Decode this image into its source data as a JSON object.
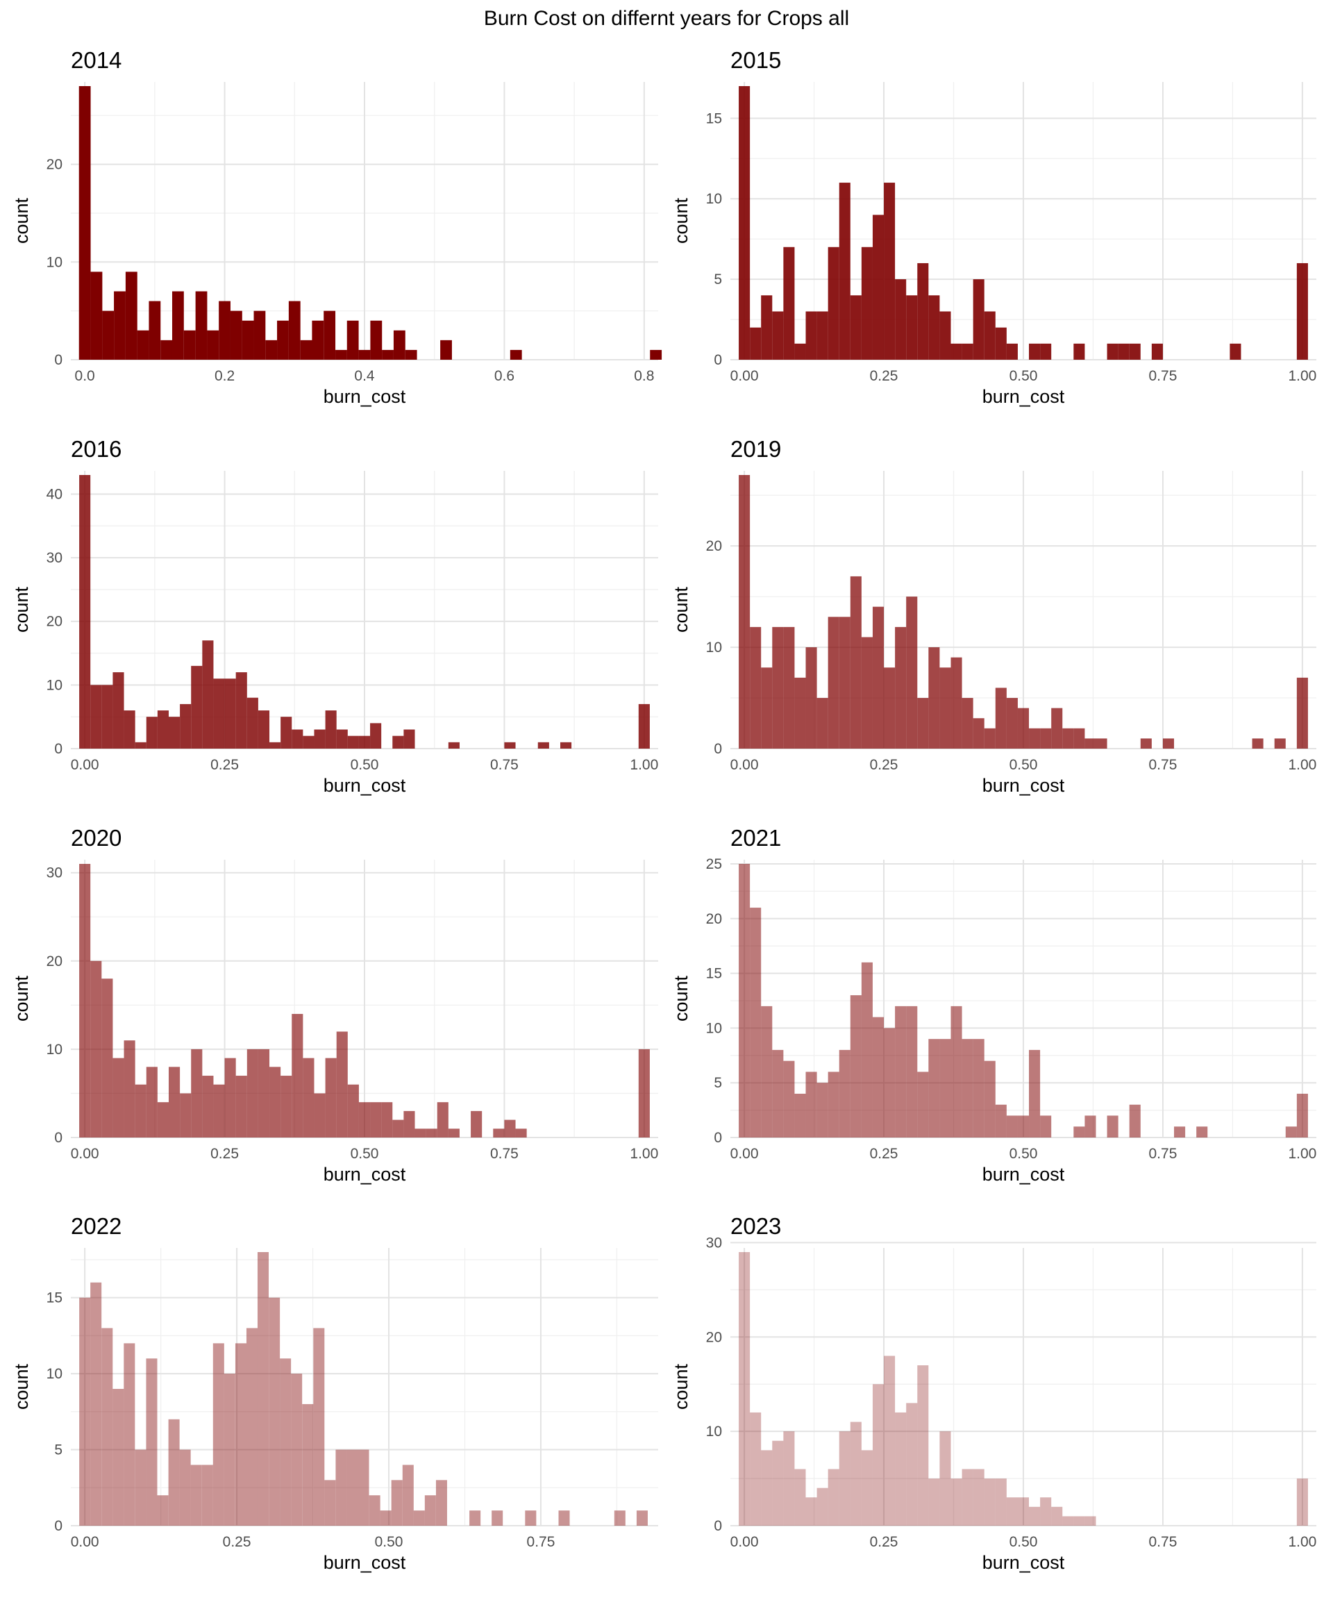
{
  "title": "Burn Cost on differnt years for Crops all",
  "chart_data": [
    {
      "type": "bar",
      "title": "2014",
      "xlabel": "burn_cost",
      "ylabel": "count",
      "fill": "#7f0000",
      "opacity": 1.0,
      "xlim": [
        -0.02,
        0.82
      ],
      "ylim": [
        0,
        28
      ],
      "xticks": [
        0,
        0.2,
        0.4,
        0.6,
        0.8
      ],
      "xtick_labels": [
        "0.0",
        "0.2",
        "0.4",
        "0.6",
        "0.8"
      ],
      "yticks": [
        0,
        10,
        20
      ],
      "ytick_labels": [
        "0",
        "10",
        "20"
      ],
      "bin_width": 0.0167,
      "bins": [
        [
          0,
          28
        ],
        [
          0.0167,
          9
        ],
        [
          0.0333,
          5
        ],
        [
          0.05,
          7
        ],
        [
          0.0667,
          9
        ],
        [
          0.0833,
          3
        ],
        [
          0.1,
          6
        ],
        [
          0.1167,
          2
        ],
        [
          0.1333,
          7
        ],
        [
          0.15,
          3
        ],
        [
          0.1667,
          7
        ],
        [
          0.1833,
          3
        ],
        [
          0.2,
          6
        ],
        [
          0.2167,
          5
        ],
        [
          0.2333,
          4
        ],
        [
          0.25,
          5
        ],
        [
          0.2667,
          2
        ],
        [
          0.2833,
          4
        ],
        [
          0.3,
          6
        ],
        [
          0.3167,
          2
        ],
        [
          0.3333,
          4
        ],
        [
          0.35,
          5
        ],
        [
          0.3667,
          1
        ],
        [
          0.3833,
          4
        ],
        [
          0.4,
          1
        ],
        [
          0.4167,
          4
        ],
        [
          0.4333,
          1
        ],
        [
          0.45,
          3
        ],
        [
          0.4667,
          1
        ],
        [
          0.5167,
          2
        ],
        [
          0.6167,
          1
        ],
        [
          0.8167,
          1
        ]
      ]
    },
    {
      "type": "bar",
      "title": "2015",
      "xlabel": "burn_cost",
      "ylabel": "count",
      "fill": "#7f0000",
      "opacity": 0.9,
      "xlim": [
        -0.025,
        1.025
      ],
      "ylim": [
        0,
        17
      ],
      "xticks": [
        0,
        0.25,
        0.5,
        0.75,
        1.0
      ],
      "xtick_labels": [
        "0.00",
        "0.25",
        "0.50",
        "0.75",
        "1.00"
      ],
      "yticks": [
        0,
        5,
        10,
        15
      ],
      "ytick_labels": [
        "0",
        "5",
        "10",
        "15"
      ],
      "bin_width": 0.02,
      "bins": [
        [
          0,
          17
        ],
        [
          0.02,
          2
        ],
        [
          0.04,
          4
        ],
        [
          0.06,
          3
        ],
        [
          0.08,
          7
        ],
        [
          0.1,
          1
        ],
        [
          0.12,
          3
        ],
        [
          0.14,
          3
        ],
        [
          0.16,
          7
        ],
        [
          0.18,
          11
        ],
        [
          0.2,
          4
        ],
        [
          0.22,
          7
        ],
        [
          0.24,
          9
        ],
        [
          0.26,
          11
        ],
        [
          0.28,
          5
        ],
        [
          0.3,
          4
        ],
        [
          0.32,
          6
        ],
        [
          0.34,
          4
        ],
        [
          0.36,
          3
        ],
        [
          0.38,
          1
        ],
        [
          0.4,
          1
        ],
        [
          0.42,
          5
        ],
        [
          0.44,
          3
        ],
        [
          0.46,
          2
        ],
        [
          0.48,
          1
        ],
        [
          0.52,
          1
        ],
        [
          0.54,
          1
        ],
        [
          0.6,
          1
        ],
        [
          0.66,
          1
        ],
        [
          0.68,
          1
        ],
        [
          0.7,
          1
        ],
        [
          0.74,
          1
        ],
        [
          0.88,
          1
        ],
        [
          1.0,
          6
        ]
      ]
    },
    {
      "type": "bar",
      "title": "2016",
      "xlabel": "burn_cost",
      "ylabel": "count",
      "fill": "#7f0000",
      "opacity": 0.82,
      "xlim": [
        -0.025,
        1.025
      ],
      "ylim": [
        0,
        43
      ],
      "xticks": [
        0,
        0.25,
        0.5,
        0.75,
        1.0
      ],
      "xtick_labels": [
        "0.00",
        "0.25",
        "0.50",
        "0.75",
        "1.00"
      ],
      "yticks": [
        0,
        10,
        20,
        30,
        40
      ],
      "ytick_labels": [
        "0",
        "10",
        "20",
        "30",
        "40"
      ],
      "bin_width": 0.02,
      "bins": [
        [
          0,
          43
        ],
        [
          0.02,
          10
        ],
        [
          0.04,
          10
        ],
        [
          0.06,
          12
        ],
        [
          0.08,
          6
        ],
        [
          0.1,
          1
        ],
        [
          0.12,
          5
        ],
        [
          0.14,
          6
        ],
        [
          0.16,
          5
        ],
        [
          0.18,
          7
        ],
        [
          0.2,
          13
        ],
        [
          0.22,
          17
        ],
        [
          0.24,
          11
        ],
        [
          0.26,
          11
        ],
        [
          0.28,
          12
        ],
        [
          0.3,
          8
        ],
        [
          0.32,
          6
        ],
        [
          0.34,
          1
        ],
        [
          0.36,
          5
        ],
        [
          0.38,
          3
        ],
        [
          0.4,
          2
        ],
        [
          0.42,
          3
        ],
        [
          0.44,
          6
        ],
        [
          0.46,
          3
        ],
        [
          0.48,
          2
        ],
        [
          0.5,
          2
        ],
        [
          0.52,
          4
        ],
        [
          0.56,
          2
        ],
        [
          0.58,
          3
        ],
        [
          0.66,
          1
        ],
        [
          0.76,
          1
        ],
        [
          0.82,
          1
        ],
        [
          0.86,
          1
        ],
        [
          1.0,
          7
        ]
      ]
    },
    {
      "type": "bar",
      "title": "2019",
      "xlabel": "burn_cost",
      "ylabel": "count",
      "fill": "#7f0000",
      "opacity": 0.72,
      "xlim": [
        -0.025,
        1.025
      ],
      "ylim": [
        0,
        27
      ],
      "xticks": [
        0,
        0.25,
        0.5,
        0.75,
        1.0
      ],
      "xtick_labels": [
        "0.00",
        "0.25",
        "0.50",
        "0.75",
        "1.00"
      ],
      "yticks": [
        0,
        10,
        20
      ],
      "ytick_labels": [
        "0",
        "10",
        "20"
      ],
      "bin_width": 0.02,
      "bins": [
        [
          0,
          27
        ],
        [
          0.02,
          12
        ],
        [
          0.04,
          8
        ],
        [
          0.06,
          12
        ],
        [
          0.08,
          12
        ],
        [
          0.1,
          7
        ],
        [
          0.12,
          10
        ],
        [
          0.14,
          5
        ],
        [
          0.16,
          13
        ],
        [
          0.18,
          13
        ],
        [
          0.2,
          17
        ],
        [
          0.22,
          11
        ],
        [
          0.24,
          14
        ],
        [
          0.26,
          8
        ],
        [
          0.28,
          12
        ],
        [
          0.3,
          15
        ],
        [
          0.32,
          5
        ],
        [
          0.34,
          10
        ],
        [
          0.36,
          8
        ],
        [
          0.38,
          9
        ],
        [
          0.4,
          5
        ],
        [
          0.42,
          3
        ],
        [
          0.44,
          2
        ],
        [
          0.46,
          6
        ],
        [
          0.48,
          5
        ],
        [
          0.5,
          4
        ],
        [
          0.52,
          2
        ],
        [
          0.54,
          2
        ],
        [
          0.56,
          4
        ],
        [
          0.58,
          2
        ],
        [
          0.6,
          2
        ],
        [
          0.62,
          1
        ],
        [
          0.64,
          1
        ],
        [
          0.72,
          1
        ],
        [
          0.76,
          1
        ],
        [
          0.92,
          1
        ],
        [
          0.96,
          1
        ],
        [
          1.0,
          7
        ]
      ]
    },
    {
      "type": "bar",
      "title": "2020",
      "xlabel": "burn_cost",
      "ylabel": "count",
      "fill": "#7f0000",
      "opacity": 0.62,
      "xlim": [
        -0.025,
        1.025
      ],
      "ylim": [
        0,
        31
      ],
      "xticks": [
        0,
        0.25,
        0.5,
        0.75,
        1.0
      ],
      "xtick_labels": [
        "0.00",
        "0.25",
        "0.50",
        "0.75",
        "1.00"
      ],
      "yticks": [
        0,
        10,
        20,
        30
      ],
      "ytick_labels": [
        "0",
        "10",
        "20",
        "30"
      ],
      "bin_width": 0.02,
      "bins": [
        [
          0,
          31
        ],
        [
          0.02,
          20
        ],
        [
          0.04,
          18
        ],
        [
          0.06,
          9
        ],
        [
          0.08,
          11
        ],
        [
          0.1,
          6
        ],
        [
          0.12,
          8
        ],
        [
          0.14,
          4
        ],
        [
          0.16,
          8
        ],
        [
          0.18,
          5
        ],
        [
          0.2,
          10
        ],
        [
          0.22,
          7
        ],
        [
          0.24,
          6
        ],
        [
          0.26,
          9
        ],
        [
          0.28,
          7
        ],
        [
          0.3,
          10
        ],
        [
          0.32,
          10
        ],
        [
          0.34,
          8
        ],
        [
          0.36,
          7
        ],
        [
          0.38,
          14
        ],
        [
          0.4,
          9
        ],
        [
          0.42,
          5
        ],
        [
          0.44,
          9
        ],
        [
          0.46,
          12
        ],
        [
          0.48,
          6
        ],
        [
          0.5,
          4
        ],
        [
          0.52,
          4
        ],
        [
          0.54,
          4
        ],
        [
          0.56,
          2
        ],
        [
          0.58,
          3
        ],
        [
          0.6,
          1
        ],
        [
          0.62,
          1
        ],
        [
          0.64,
          4
        ],
        [
          0.66,
          1
        ],
        [
          0.7,
          3
        ],
        [
          0.74,
          1
        ],
        [
          0.76,
          2
        ],
        [
          0.78,
          1
        ],
        [
          1.0,
          10
        ]
      ]
    },
    {
      "type": "bar",
      "title": "2021",
      "xlabel": "burn_cost",
      "ylabel": "count",
      "fill": "#7f0000",
      "opacity": 0.52,
      "xlim": [
        -0.025,
        1.025
      ],
      "ylim": [
        0,
        25
      ],
      "xticks": [
        0,
        0.25,
        0.5,
        0.75,
        1.0
      ],
      "xtick_labels": [
        "0.00",
        "0.25",
        "0.50",
        "0.75",
        "1.00"
      ],
      "yticks": [
        0,
        5,
        10,
        15,
        20,
        25
      ],
      "ytick_labels": [
        "0",
        "5",
        "10",
        "15",
        "20",
        "25"
      ],
      "bin_width": 0.02,
      "bins": [
        [
          0,
          25
        ],
        [
          0.02,
          21
        ],
        [
          0.04,
          12
        ],
        [
          0.06,
          8
        ],
        [
          0.08,
          7
        ],
        [
          0.1,
          4
        ],
        [
          0.12,
          6
        ],
        [
          0.14,
          5
        ],
        [
          0.16,
          6
        ],
        [
          0.18,
          8
        ],
        [
          0.2,
          13
        ],
        [
          0.22,
          16
        ],
        [
          0.24,
          11
        ],
        [
          0.26,
          10
        ],
        [
          0.28,
          12
        ],
        [
          0.3,
          12
        ],
        [
          0.32,
          6
        ],
        [
          0.34,
          9
        ],
        [
          0.36,
          9
        ],
        [
          0.38,
          12
        ],
        [
          0.4,
          9
        ],
        [
          0.42,
          9
        ],
        [
          0.44,
          7
        ],
        [
          0.46,
          3
        ],
        [
          0.48,
          2
        ],
        [
          0.5,
          2
        ],
        [
          0.52,
          8
        ],
        [
          0.54,
          2
        ],
        [
          0.6,
          1
        ],
        [
          0.62,
          2
        ],
        [
          0.66,
          2
        ],
        [
          0.7,
          3
        ],
        [
          0.78,
          1
        ],
        [
          0.82,
          1
        ],
        [
          0.98,
          1
        ],
        [
          1.0,
          4
        ]
      ]
    },
    {
      "type": "bar",
      "title": "2022",
      "xlabel": "burn_cost",
      "ylabel": "count",
      "fill": "#7f0000",
      "opacity": 0.42,
      "xlim": [
        -0.023,
        0.943
      ],
      "ylim": [
        0,
        18
      ],
      "xticks": [
        0,
        0.25,
        0.5,
        0.75
      ],
      "xtick_labels": [
        "0.00",
        "0.25",
        "0.50",
        "0.75"
      ],
      "yticks": [
        0,
        5,
        10,
        15
      ],
      "ytick_labels": [
        "0",
        "5",
        "10",
        "15"
      ],
      "bin_width": 0.0183,
      "bins": [
        [
          0,
          15
        ],
        [
          0.0183,
          16
        ],
        [
          0.0367,
          13
        ],
        [
          0.055,
          9
        ],
        [
          0.0733,
          12
        ],
        [
          0.0917,
          5
        ],
        [
          0.11,
          11
        ],
        [
          0.1283,
          2
        ],
        [
          0.1467,
          7
        ],
        [
          0.165,
          5
        ],
        [
          0.1833,
          4
        ],
        [
          0.2017,
          4
        ],
        [
          0.22,
          12
        ],
        [
          0.2383,
          10
        ],
        [
          0.2567,
          12
        ],
        [
          0.275,
          13
        ],
        [
          0.2933,
          18
        ],
        [
          0.3117,
          15
        ],
        [
          0.33,
          11
        ],
        [
          0.3483,
          10
        ],
        [
          0.3667,
          8
        ],
        [
          0.385,
          13
        ],
        [
          0.4033,
          3
        ],
        [
          0.4217,
          5
        ],
        [
          0.44,
          5
        ],
        [
          0.4583,
          5
        ],
        [
          0.4767,
          2
        ],
        [
          0.495,
          1
        ],
        [
          0.5133,
          3
        ],
        [
          0.5317,
          4
        ],
        [
          0.55,
          1
        ],
        [
          0.5683,
          2
        ],
        [
          0.5867,
          3
        ],
        [
          0.6417,
          1
        ],
        [
          0.6783,
          1
        ],
        [
          0.7333,
          1
        ],
        [
          0.7883,
          1
        ],
        [
          0.88,
          1
        ],
        [
          0.9167,
          1
        ]
      ]
    },
    {
      "type": "bar",
      "title": "2023",
      "xlabel": "burn_cost",
      "ylabel": "count",
      "fill": "#7f0000",
      "opacity": 0.3,
      "xlim": [
        -0.025,
        1.025
      ],
      "ylim": [
        0,
        29
      ],
      "xticks": [
        0,
        0.25,
        0.5,
        0.75,
        1.0
      ],
      "xtick_labels": [
        "0.00",
        "0.25",
        "0.50",
        "0.75",
        "1.00"
      ],
      "yticks": [
        0,
        10,
        20,
        30
      ],
      "ytick_labels": [
        "0",
        "10",
        "20",
        "30"
      ],
      "bin_width": 0.02,
      "bins": [
        [
          0,
          29
        ],
        [
          0.02,
          12
        ],
        [
          0.04,
          8
        ],
        [
          0.06,
          9
        ],
        [
          0.08,
          10
        ],
        [
          0.1,
          6
        ],
        [
          0.12,
          3
        ],
        [
          0.14,
          4
        ],
        [
          0.16,
          6
        ],
        [
          0.18,
          10
        ],
        [
          0.2,
          11
        ],
        [
          0.22,
          8
        ],
        [
          0.24,
          15
        ],
        [
          0.26,
          18
        ],
        [
          0.28,
          12
        ],
        [
          0.3,
          13
        ],
        [
          0.32,
          17
        ],
        [
          0.34,
          5
        ],
        [
          0.36,
          10
        ],
        [
          0.38,
          5
        ],
        [
          0.4,
          6
        ],
        [
          0.42,
          6
        ],
        [
          0.44,
          5
        ],
        [
          0.46,
          5
        ],
        [
          0.48,
          3
        ],
        [
          0.5,
          3
        ],
        [
          0.52,
          2
        ],
        [
          0.54,
          3
        ],
        [
          0.56,
          2
        ],
        [
          0.58,
          1
        ],
        [
          0.6,
          1
        ],
        [
          0.62,
          1
        ],
        [
          1.0,
          5
        ]
      ]
    }
  ]
}
